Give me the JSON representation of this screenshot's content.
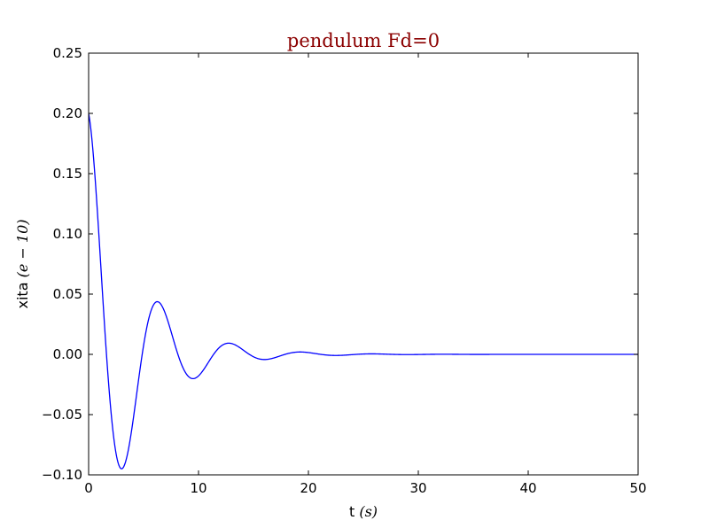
{
  "chart_data": {
    "type": "line",
    "title": "pendulum Fd=0",
    "title_color": "#8b0000",
    "xlabel": "t",
    "xlabel_unit": "(s)",
    "ylabel": "xita",
    "ylabel_unit": "(e − 10)",
    "xlim": [
      0,
      50
    ],
    "ylim": [
      -0.1,
      0.25
    ],
    "xticks": [
      0,
      10,
      20,
      30,
      40,
      50
    ],
    "xtick_labels": [
      "0",
      "10",
      "20",
      "30",
      "40",
      "50"
    ],
    "yticks": [
      -0.1,
      -0.05,
      0.0,
      0.05,
      0.1,
      0.15,
      0.2,
      0.25
    ],
    "ytick_labels": [
      "−0.10",
      "−0.05",
      "0.00",
      "0.05",
      "0.10",
      "0.15",
      "0.20",
      "0.25"
    ],
    "grid": false,
    "legend": false,
    "series": [
      {
        "color": "#0000ff",
        "model": {
          "kind": "damped_cosine",
          "amplitude": 0.2,
          "omega": 0.9668,
          "decay": 0.2385,
          "t_start": 0,
          "t_end": 50,
          "samples": 1000
        }
      }
    ]
  }
}
